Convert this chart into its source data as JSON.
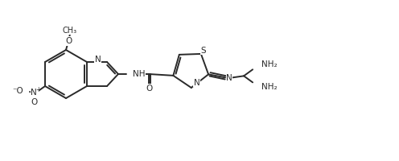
{
  "bg_color": "#ffffff",
  "line_color": "#2a2a2a",
  "text_color": "#2a2a2a",
  "lw": 1.4,
  "fs": 7.5,
  "figsize": [
    4.96,
    2.0
  ],
  "dpi": 100,
  "xlim": [
    0,
    496
  ],
  "ylim": [
    0,
    200
  ]
}
